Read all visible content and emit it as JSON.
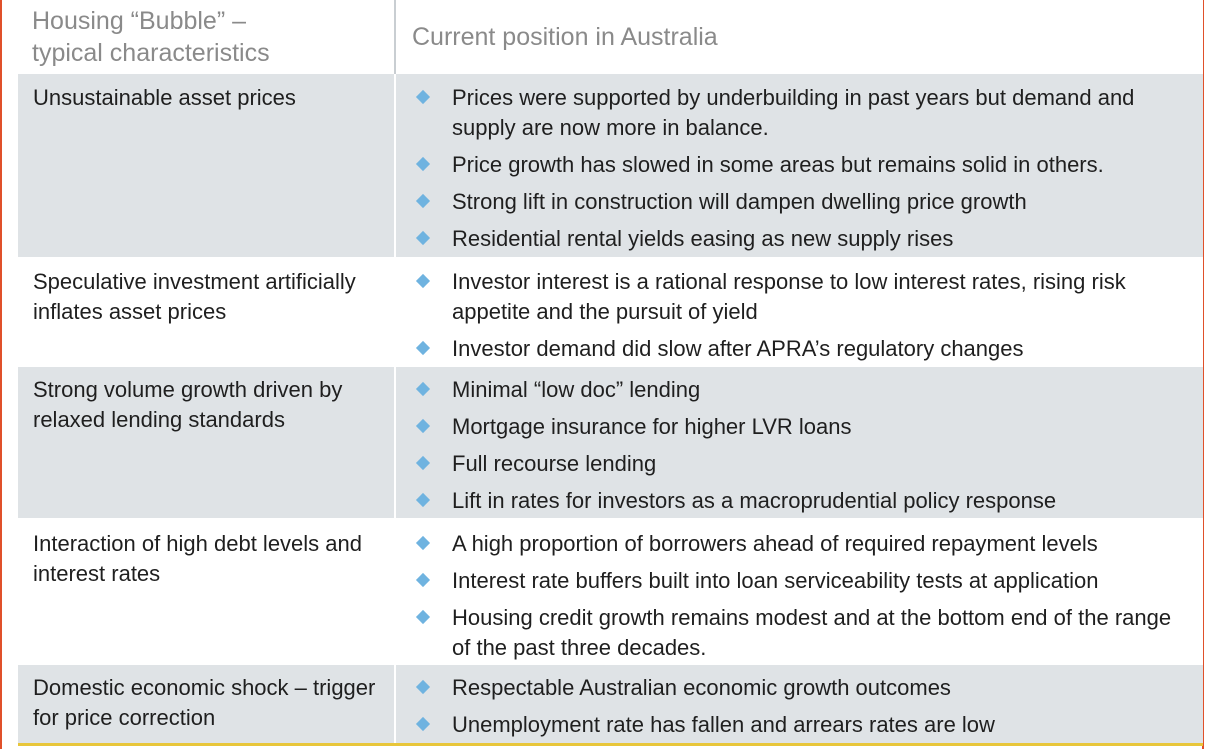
{
  "header": {
    "left_line1": "Housing “Bubble” –",
    "left_line2": "typical characteristics",
    "right": "Current position in Australia"
  },
  "rows": [
    {
      "characteristic": "Unsustainable asset prices",
      "points": [
        "Prices were supported by underbuilding in past years but demand and supply are now more in balance.",
        "Price growth has slowed in some areas but remains solid in others.",
        "Strong lift in construction will dampen dwelling price growth",
        "Residential rental yields easing as new supply rises"
      ]
    },
    {
      "characteristic": "Speculative investment artificially inflates asset prices",
      "points": [
        "Investor interest is a rational response to low interest rates, rising risk appetite and the pursuit of yield",
        "Investor demand did slow after APRA’s regulatory changes"
      ]
    },
    {
      "characteristic": "Strong volume growth driven by relaxed lending standards",
      "points": [
        "Minimal “low doc” lending",
        "Mortgage insurance for higher LVR loans",
        "Full recourse lending",
        "Lift in rates for investors as a macroprudential policy response"
      ]
    },
    {
      "characteristic": "Interaction of high debt levels and interest rates",
      "points": [
        "A high proportion of borrowers ahead of required repayment levels",
        "Interest rate buffers built into loan serviceability tests at application",
        "Housing credit growth remains modest and at the bottom end of the range of the past three decades."
      ]
    },
    {
      "characteristic": "Domestic economic shock – trigger for price correction",
      "points": [
        "Respectable Australian economic growth outcomes",
        "Unemployment rate has fallen and arrears rates are low"
      ]
    }
  ],
  "colors": {
    "shade": "#dfe3e6",
    "bullet": "#6fb3e0",
    "frame": "#e0502a",
    "bottom_rule": "#e8c63a"
  }
}
